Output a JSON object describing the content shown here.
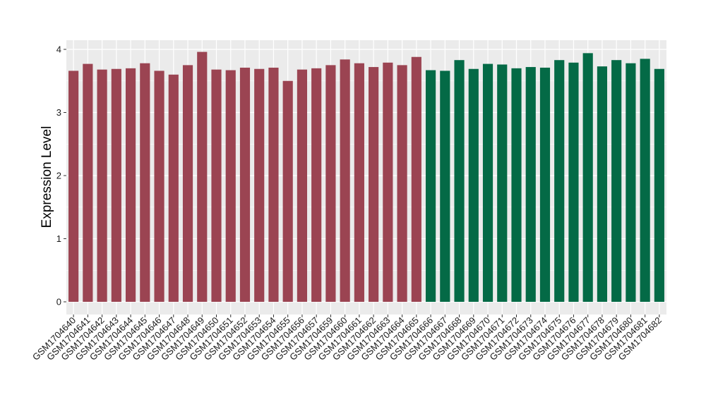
{
  "chart_data": {
    "type": "bar",
    "title": "",
    "xlabel": "",
    "ylabel": "Expression Level",
    "ylim": [
      0,
      4.1
    ],
    "yticks": [
      0,
      1,
      2,
      3,
      4
    ],
    "grid": true,
    "colors": {
      "group1": "#9b4452",
      "group2": "#046a46",
      "panel": "#ebebeb",
      "grid": "#ffffff"
    },
    "categories": [
      "GSM1704640",
      "GSM1704641",
      "GSM1704642",
      "GSM1704643",
      "GSM1704644",
      "GSM1704645",
      "GSM1704646",
      "GSM1704647",
      "GSM1704648",
      "GSM1704649",
      "GSM1704650",
      "GSM1704651",
      "GSM1704652",
      "GSM1704653",
      "GSM1704654",
      "GSM1704655",
      "GSM1704656",
      "GSM1704657",
      "GSM1704659",
      "GSM1704660",
      "GSM1704661",
      "GSM1704662",
      "GSM1704663",
      "GSM1704664",
      "GSM1704665",
      "GSM1704666",
      "GSM1704667",
      "GSM1704668",
      "GSM1704669",
      "GSM1704670",
      "GSM1704671",
      "GSM1704672",
      "GSM1704673",
      "GSM1704674",
      "GSM1704675",
      "GSM1704676",
      "GSM1704677",
      "GSM1704678",
      "GSM1704679",
      "GSM1704680",
      "GSM1704681",
      "GSM1704682"
    ],
    "values": [
      3.66,
      3.77,
      3.68,
      3.69,
      3.7,
      3.78,
      3.66,
      3.6,
      3.75,
      3.96,
      3.68,
      3.67,
      3.71,
      3.69,
      3.71,
      3.5,
      3.68,
      3.7,
      3.75,
      3.84,
      3.78,
      3.72,
      3.79,
      3.75,
      3.88,
      3.67,
      3.66,
      3.83,
      3.69,
      3.77,
      3.76,
      3.7,
      3.72,
      3.71,
      3.83,
      3.79,
      3.94,
      3.73,
      3.83,
      3.78,
      3.85,
      3.69
    ],
    "groups": [
      1,
      1,
      1,
      1,
      1,
      1,
      1,
      1,
      1,
      1,
      1,
      1,
      1,
      1,
      1,
      1,
      1,
      1,
      1,
      1,
      1,
      1,
      1,
      1,
      1,
      2,
      2,
      2,
      2,
      2,
      2,
      2,
      2,
      2,
      2,
      2,
      2,
      2,
      2,
      2,
      2,
      2
    ]
  }
}
